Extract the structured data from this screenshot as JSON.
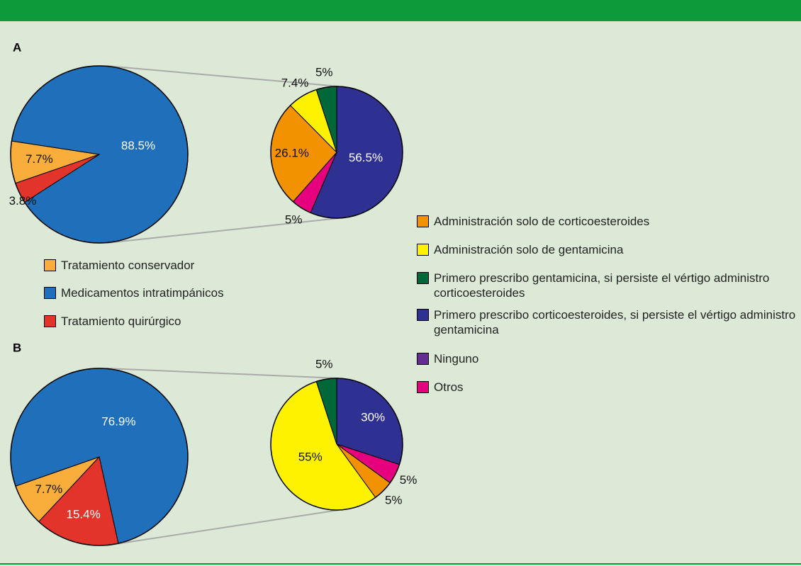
{
  "chart_data": [
    {
      "type": "pie",
      "title": "A",
      "categories": [
        "Tratamiento conservador",
        "Medicamentos intratimpánicos",
        "Tratamiento quirúrgico"
      ],
      "values": [
        7.7,
        88.5,
        3.8
      ],
      "value_labels": [
        "7.7%",
        "88.5%",
        "3.8%"
      ],
      "colors": [
        "#f9ad3a",
        "#1f6fba",
        "#e3342b"
      ]
    },
    {
      "type": "pie",
      "categories": [
        "Administración solo de corticoesteroides",
        "Administración solo de gentamicina",
        "Primero prescribo gentamicina, si persiste el vértigo administro corticoesteroides",
        "Primero prescribo corticoesteroides, si persiste el vértigo administro gentamicina",
        "Ninguno",
        "Otros"
      ],
      "values": [
        26.1,
        7.4,
        5,
        56.5,
        0,
        5
      ],
      "value_labels": [
        "26.1%",
        "7.4%",
        "5%",
        "56.5%",
        null,
        "5%"
      ],
      "colors": [
        "#f39200",
        "#fff200",
        "#006838",
        "#2e3192",
        "#662d91",
        "#e6007e"
      ]
    },
    {
      "type": "pie",
      "title": "B",
      "values": [
        7.7,
        76.9,
        15.4
      ],
      "value_labels": [
        "7.7%",
        "76.9%",
        "15.4%"
      ]
    },
    {
      "type": "pie",
      "values": [
        5,
        55,
        5,
        30,
        0,
        5
      ],
      "value_labels": [
        "5%",
        "55%",
        "5%",
        "30%",
        null,
        "5%"
      ]
    }
  ]
}
